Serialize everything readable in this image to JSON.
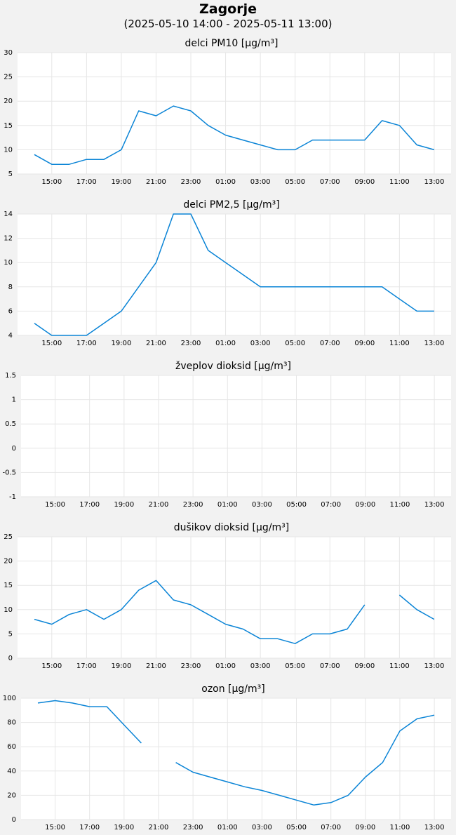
{
  "header": {
    "title": "Zagorje",
    "subtitle": "(2025-05-10 14:00 - 2025-05-11 13:00)"
  },
  "colors": {
    "line": "#0a84d6",
    "grid": "#e6e6e6",
    "plot_bg": "#ffffff",
    "page_bg": "#f2f2f2"
  },
  "chart_data": [
    {
      "type": "line",
      "title": "delci PM10 [µg/m³]",
      "x": [
        "14:00",
        "15:00",
        "16:00",
        "17:00",
        "18:00",
        "19:00",
        "20:00",
        "21:00",
        "22:00",
        "23:00",
        "00:00",
        "01:00",
        "02:00",
        "03:00",
        "04:00",
        "05:00",
        "06:00",
        "07:00",
        "08:00",
        "09:00",
        "10:00",
        "11:00",
        "12:00",
        "13:00"
      ],
      "x_tick_labels": [
        "15:00",
        "17:00",
        "19:00",
        "21:00",
        "23:00",
        "01:00",
        "03:00",
        "05:00",
        "07:00",
        "09:00",
        "11:00",
        "13:00"
      ],
      "ylim": [
        5,
        30
      ],
      "y_ticks": [
        5,
        10,
        15,
        20,
        25,
        30
      ],
      "grid": true,
      "series": [
        {
          "values": [
            9,
            7,
            7,
            8,
            8,
            10,
            18,
            17,
            19,
            18,
            15,
            13,
            12,
            11,
            10,
            10,
            12,
            12,
            12,
            12,
            16,
            15,
            11,
            10
          ]
        }
      ]
    },
    {
      "type": "line",
      "title": "delci PM2,5 [µg/m³]",
      "x": [
        "14:00",
        "15:00",
        "16:00",
        "17:00",
        "18:00",
        "19:00",
        "20:00",
        "21:00",
        "22:00",
        "23:00",
        "00:00",
        "01:00",
        "02:00",
        "03:00",
        "04:00",
        "05:00",
        "06:00",
        "07:00",
        "08:00",
        "09:00",
        "10:00",
        "11:00",
        "12:00",
        "13:00"
      ],
      "x_tick_labels": [
        "15:00",
        "17:00",
        "19:00",
        "21:00",
        "23:00",
        "01:00",
        "03:00",
        "05:00",
        "07:00",
        "09:00",
        "11:00",
        "13:00"
      ],
      "ylim": [
        4,
        14
      ],
      "y_ticks": [
        4,
        6,
        8,
        10,
        12,
        14
      ],
      "grid": true,
      "series": [
        {
          "values": [
            5,
            4,
            4,
            4,
            5,
            6,
            8,
            10,
            14,
            14,
            11,
            10,
            9,
            8,
            8,
            8,
            8,
            8,
            8,
            8,
            8,
            7,
            6,
            6
          ]
        }
      ]
    },
    {
      "type": "line",
      "title": "žveplov dioksid [µg/m³]",
      "x": [
        "14:00",
        "15:00",
        "16:00",
        "17:00",
        "18:00",
        "19:00",
        "20:00",
        "21:00",
        "22:00",
        "23:00",
        "00:00",
        "01:00",
        "02:00",
        "03:00",
        "04:00",
        "05:00",
        "06:00",
        "07:00",
        "08:00",
        "09:00",
        "10:00",
        "11:00",
        "12:00",
        "13:00"
      ],
      "x_tick_labels": [
        "15:00",
        "17:00",
        "19:00",
        "21:00",
        "23:00",
        "01:00",
        "03:00",
        "05:00",
        "07:00",
        "09:00",
        "11:00",
        "13:00"
      ],
      "ylim": [
        -1,
        1.5
      ],
      "y_ticks": [
        -1,
        -0.5,
        0,
        0.5,
        1,
        1.5
      ],
      "grid": true,
      "series": [
        {
          "values": [
            null,
            null,
            null,
            null,
            null,
            null,
            null,
            null,
            null,
            null,
            null,
            null,
            null,
            null,
            null,
            null,
            null,
            null,
            null,
            null,
            null,
            null,
            null,
            null
          ]
        }
      ]
    },
    {
      "type": "line",
      "title": "dušikov dioksid [µg/m³]",
      "x": [
        "14:00",
        "15:00",
        "16:00",
        "17:00",
        "18:00",
        "19:00",
        "20:00",
        "21:00",
        "22:00",
        "23:00",
        "00:00",
        "01:00",
        "02:00",
        "03:00",
        "04:00",
        "05:00",
        "06:00",
        "07:00",
        "08:00",
        "09:00",
        "10:00",
        "11:00",
        "12:00",
        "13:00"
      ],
      "x_tick_labels": [
        "15:00",
        "17:00",
        "19:00",
        "21:00",
        "23:00",
        "01:00",
        "03:00",
        "05:00",
        "07:00",
        "09:00",
        "11:00",
        "13:00"
      ],
      "ylim": [
        0,
        25
      ],
      "y_ticks": [
        0,
        5,
        10,
        15,
        20,
        25
      ],
      "grid": true,
      "series": [
        {
          "values": [
            8,
            7,
            9,
            10,
            8,
            10,
            14,
            16,
            12,
            11,
            9,
            7,
            6,
            4,
            4,
            3,
            5,
            5,
            6,
            11,
            null,
            13,
            10,
            8
          ]
        }
      ]
    },
    {
      "type": "line",
      "title": "ozon [µg/m³]",
      "x": [
        "14:00",
        "15:00",
        "16:00",
        "17:00",
        "18:00",
        "19:00",
        "20:00",
        "21:00",
        "22:00",
        "23:00",
        "00:00",
        "01:00",
        "02:00",
        "03:00",
        "04:00",
        "05:00",
        "06:00",
        "07:00",
        "08:00",
        "09:00",
        "10:00",
        "11:00",
        "12:00",
        "13:00"
      ],
      "x_tick_labels": [
        "15:00",
        "17:00",
        "19:00",
        "21:00",
        "23:00",
        "01:00",
        "03:00",
        "05:00",
        "07:00",
        "09:00",
        "11:00",
        "13:00"
      ],
      "ylim": [
        0,
        100
      ],
      "y_ticks": [
        0,
        20,
        40,
        60,
        80,
        100
      ],
      "grid": true,
      "series": [
        {
          "values": [
            96,
            98,
            96,
            93,
            93,
            78,
            63,
            null,
            47,
            39,
            35,
            31,
            27,
            24,
            20,
            16,
            12,
            14,
            20,
            35,
            47,
            73,
            83,
            86
          ]
        }
      ]
    }
  ]
}
